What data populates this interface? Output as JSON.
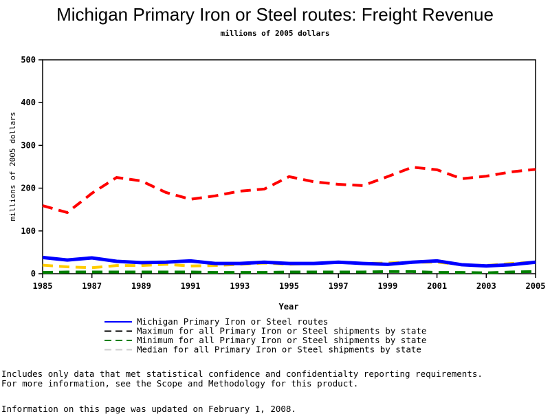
{
  "chart_data": {
    "type": "line",
    "title": "Michigan Primary Iron or Steel routes: Freight Revenue",
    "subtitle": "millions of 2005 dollars",
    "xlabel": "Year",
    "ylabel": "millions of 2005 dollars",
    "xlim": [
      1985,
      2005
    ],
    "ylim": [
      0,
      500
    ],
    "xticks": [
      1985,
      1987,
      1989,
      1991,
      1993,
      1995,
      1997,
      1999,
      2001,
      2003,
      2005
    ],
    "yticks": [
      0,
      100,
      200,
      300,
      400,
      500
    ],
    "x": [
      1985,
      1986,
      1987,
      1988,
      1989,
      1990,
      1991,
      1992,
      1993,
      1994,
      1995,
      1996,
      1997,
      1998,
      1999,
      2000,
      2001,
      2002,
      2003,
      2004,
      2005
    ],
    "series": [
      {
        "name": "Michigan Primary Iron or Steel routes",
        "color": "#0000ff",
        "style": "solid",
        "values": [
          38,
          32,
          37,
          29,
          26,
          27,
          30,
          24,
          24,
          27,
          24,
          24,
          27,
          24,
          22,
          27,
          30,
          21,
          18,
          21,
          27
        ]
      },
      {
        "name": "Maximum for all Primary Iron or Steel shipments by state",
        "color": "#ff0000",
        "style": "dashed",
        "values": [
          159,
          143,
          188,
          225,
          217,
          190,
          174,
          182,
          193,
          198,
          227,
          215,
          209,
          206,
          227,
          249,
          243,
          222,
          228,
          238,
          244
        ]
      },
      {
        "name": "Minimum for all Primary Iron or Steel shipments by state",
        "color": "#008000",
        "style": "dashed",
        "values": [
          3,
          4,
          4,
          4,
          4,
          4,
          4,
          3,
          3,
          3,
          4,
          4,
          4,
          4,
          5,
          5,
          3,
          3,
          2,
          4,
          5
        ]
      },
      {
        "name": "Median for all Primary Iron or Steel shipments by state",
        "color": "#ffcc00",
        "style": "dashed",
        "values": [
          20,
          16,
          14,
          19,
          19,
          22,
          18,
          19,
          22,
          25,
          22,
          24,
          27,
          24,
          25,
          27,
          27,
          21,
          19,
          24,
          27
        ]
      }
    ],
    "legend_placement": "bottom"
  },
  "notes": [
    "Includes only data that met statistical confidence and confidentialty reporting requirements.",
    "For more information, see the Scope and Methodology for this product."
  ],
  "updated": "Information on this page was updated on February 1, 2008."
}
